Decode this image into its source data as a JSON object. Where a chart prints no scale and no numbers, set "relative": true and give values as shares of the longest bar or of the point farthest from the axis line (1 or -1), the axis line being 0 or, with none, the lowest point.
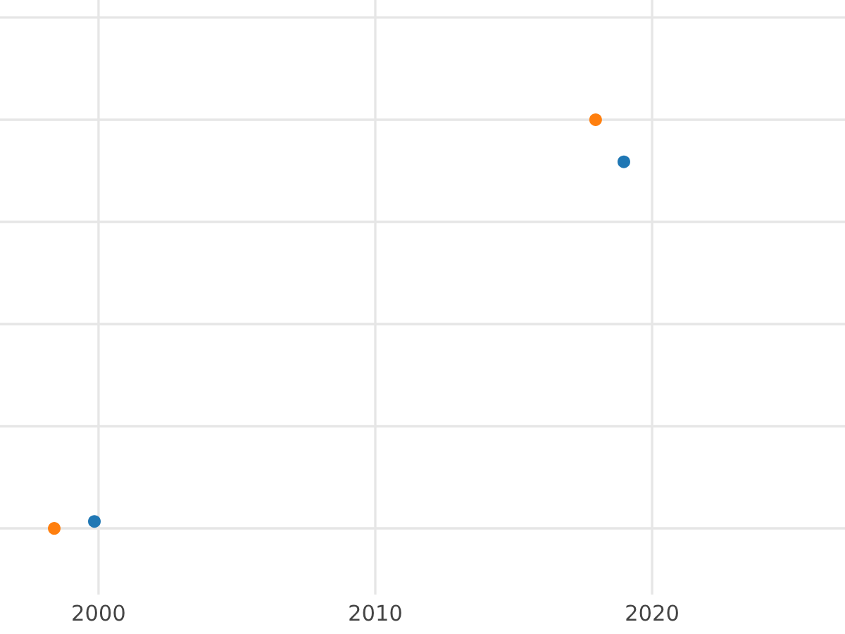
{
  "chart_data": {
    "type": "scatter",
    "relative": true,
    "xlim": [
      1996.44,
      2026.97
    ],
    "xticks": [
      2000,
      2010,
      2020
    ],
    "tick_labels": "x",
    "grid": true,
    "marker": "circle",
    "series": [
      {
        "color": "#1f77b4",
        "x": [
          1999.85,
          2018.98
        ],
        "values": [
          0.017,
          0.897
        ]
      },
      {
        "color": "#ff7f0e",
        "x": [
          1998.4,
          2017.96
        ],
        "values": [
          0,
          1
        ]
      }
    ]
  }
}
